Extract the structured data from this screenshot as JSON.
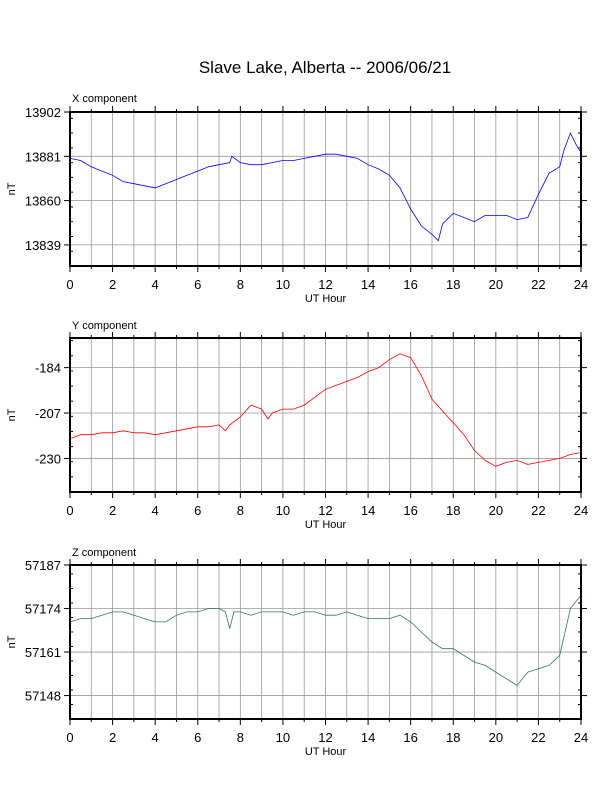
{
  "title": "Slave Lake, Alberta -- 2006/06/21",
  "colors": {
    "x": "#0000ff",
    "y": "#ff0000",
    "z": "#2e7d4f",
    "grid": "#999999"
  },
  "chart_data": [
    {
      "type": "line",
      "panel_label": "X component",
      "ylabel": "nT",
      "xlabel": "UT Hour",
      "xlim": [
        0,
        24
      ],
      "x_ticks": [
        0,
        2,
        4,
        6,
        8,
        10,
        12,
        14,
        16,
        18,
        20,
        22,
        24
      ],
      "ylim": [
        13829,
        13902
      ],
      "y_ticks": [
        13902,
        13881,
        13860,
        13839
      ],
      "series": [
        {
          "color": "#0000ff",
          "x": [
            0,
            0.5,
            1,
            1.5,
            2,
            2.5,
            3,
            3.5,
            4,
            4.5,
            5,
            5.5,
            6,
            6.5,
            7,
            7.5,
            7.6,
            8,
            8.5,
            9,
            9.5,
            10,
            10.5,
            11,
            11.5,
            12,
            12.5,
            13,
            13.5,
            14,
            14.5,
            15,
            15.5,
            16,
            16.5,
            17,
            17.3,
            17.5,
            18,
            18.5,
            19,
            19.5,
            20,
            20.5,
            21,
            21.5,
            22,
            22.5,
            23,
            23.2,
            23.5,
            23.8,
            24
          ],
          "y": [
            13880,
            13879,
            13876,
            13874,
            13872,
            13869,
            13868,
            13867,
            13866,
            13868,
            13870,
            13872,
            13874,
            13876,
            13877,
            13878,
            13881,
            13878,
            13877,
            13877,
            13878,
            13879,
            13879,
            13880,
            13881,
            13882,
            13882,
            13881,
            13880,
            13877,
            13875,
            13872,
            13866,
            13856,
            13848,
            13844,
            13841,
            13849,
            13854,
            13852,
            13850,
            13853,
            13853,
            13853,
            13851,
            13852,
            13863,
            13873,
            13876,
            13884,
            13892,
            13886,
            13883
          ]
        }
      ]
    },
    {
      "type": "line",
      "panel_label": "Y component",
      "ylabel": "nT",
      "xlabel": "UT Hour",
      "xlim": [
        0,
        24
      ],
      "x_ticks": [
        0,
        2,
        4,
        6,
        8,
        10,
        12,
        14,
        16,
        18,
        20,
        22,
        24
      ],
      "ylim": [
        -247,
        -169
      ],
      "y_ticks": [
        -184,
        -207,
        -230
      ],
      "series": [
        {
          "color": "#ff0000",
          "x": [
            0,
            0.5,
            1,
            1.5,
            2,
            2.5,
            3,
            3.5,
            4,
            4.5,
            5,
            5.5,
            6,
            6.5,
            7,
            7.3,
            7.5,
            8,
            8.5,
            9,
            9.3,
            9.5,
            10,
            10.5,
            11,
            11.5,
            12,
            12.5,
            13,
            13.5,
            14,
            14.5,
            15,
            15.5,
            16,
            16.5,
            17,
            17.5,
            18,
            18.5,
            19,
            19.5,
            20,
            20.5,
            21,
            21.5,
            22,
            22.5,
            23,
            23.5,
            24
          ],
          "y": [
            -220,
            -218,
            -218,
            -217,
            -217,
            -216,
            -217,
            -217,
            -218,
            -217,
            -216,
            -215,
            -214,
            -214,
            -213,
            -216,
            -213,
            -209,
            -203,
            -205,
            -210,
            -207,
            -205,
            -205,
            -203,
            -199,
            -195,
            -193,
            -191,
            -189,
            -186,
            -184,
            -180,
            -177,
            -179,
            -188,
            -200,
            -206,
            -212,
            -218,
            -226,
            -231,
            -234,
            -232,
            -231,
            -233,
            -232,
            -231,
            -230,
            -228,
            -227
          ]
        }
      ]
    },
    {
      "type": "line",
      "panel_label": "Z component",
      "ylabel": "nT",
      "xlabel": "UT Hour",
      "xlim": [
        0,
        24
      ],
      "x_ticks": [
        0,
        2,
        4,
        6,
        8,
        10,
        12,
        14,
        16,
        18,
        20,
        22,
        24
      ],
      "ylim": [
        57141,
        57187
      ],
      "y_ticks": [
        57187,
        57174,
        57161,
        57148
      ],
      "series": [
        {
          "color": "#2e7d4f",
          "x": [
            0,
            0.5,
            1,
            1.5,
            2,
            2.5,
            3,
            3.5,
            4,
            4.5,
            5,
            5.5,
            6,
            6.5,
            7,
            7.3,
            7.5,
            7.7,
            8,
            8.5,
            9,
            9.5,
            10,
            10.5,
            11,
            11.5,
            12,
            12.5,
            13,
            13.5,
            14,
            14.5,
            15,
            15.5,
            16,
            16.5,
            17,
            17.5,
            18,
            18.5,
            19,
            19.5,
            20,
            20.5,
            21,
            21.5,
            22,
            22.5,
            23,
            23.5,
            24
          ],
          "y": [
            57170,
            57171,
            57171,
            57172,
            57173,
            57173,
            57172,
            57171,
            57170,
            57170,
            57172,
            57173,
            57173,
            57174,
            57174,
            57173,
            57168,
            57173,
            57173,
            57172,
            57173,
            57173,
            57173,
            57172,
            57173,
            57173,
            57172,
            57172,
            57173,
            57172,
            57171,
            57171,
            57171,
            57172,
            57170,
            57167,
            57164,
            57162,
            57162,
            57160,
            57158,
            57157,
            57155,
            57153,
            57151,
            57155,
            57156,
            57157,
            57160,
            57174,
            57178
          ]
        }
      ]
    }
  ]
}
